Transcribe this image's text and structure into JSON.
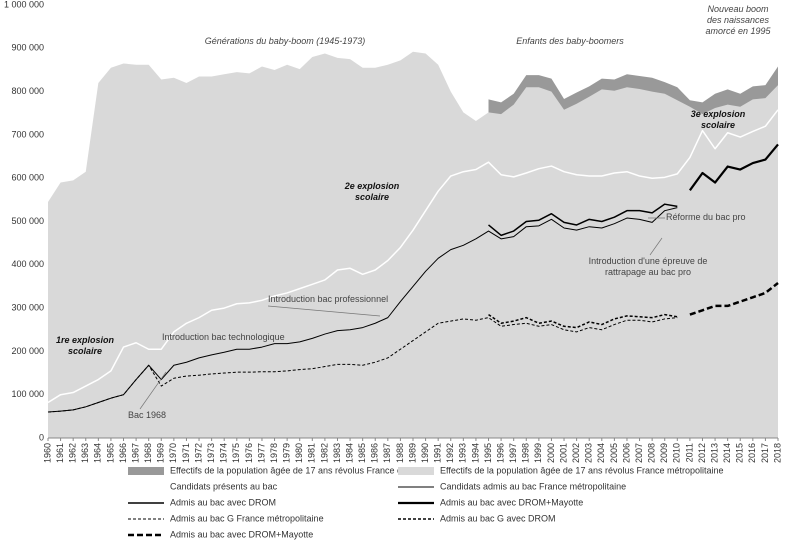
{
  "chart_data": {
    "type": "line",
    "x": [
      1960,
      1961,
      1962,
      1963,
      1964,
      1965,
      1966,
      1967,
      1968,
      1969,
      1970,
      1971,
      1972,
      1973,
      1974,
      1975,
      1976,
      1977,
      1978,
      1979,
      1980,
      1981,
      1982,
      1983,
      1984,
      1985,
      1986,
      1987,
      1988,
      1989,
      1990,
      1991,
      1992,
      1993,
      1994,
      1995,
      1996,
      1997,
      1998,
      1999,
      2000,
      2001,
      2002,
      2003,
      2004,
      2005,
      2006,
      2007,
      2008,
      2009,
      2010,
      2011,
      2012,
      2013,
      2014,
      2015,
      2016,
      2017,
      2018
    ],
    "xlim": [
      1960,
      2018
    ],
    "xticks": [
      1960,
      1961,
      1962,
      1963,
      1964,
      1965,
      1966,
      1967,
      1968,
      1969,
      1970,
      1971,
      1972,
      1973,
      1974,
      1975,
      1976,
      1977,
      1978,
      1979,
      1980,
      1981,
      1982,
      1983,
      1984,
      1985,
      1986,
      1987,
      1988,
      1989,
      1990,
      1991,
      1992,
      1993,
      1994,
      1995,
      1996,
      1997,
      1998,
      1999,
      2000,
      2001,
      2002,
      2003,
      2004,
      2005,
      2006,
      2007,
      2008,
      2009,
      2010,
      2011,
      2012,
      2013,
      2014,
      2015,
      2016,
      2017,
      2018
    ],
    "ylim": [
      0,
      1000000
    ],
    "yticks": [
      0,
      {
        "value": 100000,
        "label": "100 000"
      },
      {
        "value": 200000,
        "label": "200 000"
      },
      {
        "value": 300000,
        "label": "300 000"
      },
      {
        "value": 400000,
        "label": "400 000"
      },
      {
        "value": 500000,
        "label": "500 000"
      },
      {
        "value": 600000,
        "label": "600 000"
      },
      {
        "value": 700000,
        "label": "700 000"
      },
      {
        "value": 800000,
        "label": "800 000"
      },
      {
        "value": 900000,
        "label": "900 000"
      },
      {
        "value": 1000000,
        "label": "1 000 000"
      }
    ],
    "series": [
      {
        "name": "Effectifs de la population âgée de 17 ans révolus France entière",
        "kind": "area",
        "color": "#999999",
        "values": [
          null,
          null,
          null,
          null,
          null,
          null,
          null,
          null,
          null,
          null,
          null,
          null,
          null,
          null,
          null,
          null,
          null,
          null,
          null,
          null,
          null,
          null,
          null,
          null,
          null,
          null,
          null,
          null,
          null,
          null,
          null,
          null,
          null,
          null,
          null,
          782000,
          775000,
          795000,
          838000,
          838000,
          830000,
          783000,
          798000,
          812000,
          830000,
          828000,
          840000,
          836000,
          832000,
          822000,
          810000,
          780000,
          775000,
          795000,
          805000,
          795000,
          812000,
          815000,
          858000
        ]
      },
      {
        "name": "Effectifs de la population âgée de 17 ans révolus France métropolitaine",
        "kind": "area",
        "color": "#d9d9d9",
        "values": [
          545000,
          590000,
          595000,
          615000,
          820000,
          855000,
          865000,
          862000,
          862000,
          828000,
          832000,
          820000,
          835000,
          835000,
          840000,
          845000,
          842000,
          858000,
          850000,
          862000,
          852000,
          880000,
          888000,
          878000,
          875000,
          855000,
          855000,
          862000,
          872000,
          892000,
          888000,
          862000,
          800000,
          752000,
          732000,
          752000,
          748000,
          770000,
          810000,
          810000,
          800000,
          758000,
          772000,
          788000,
          805000,
          802000,
          810000,
          806000,
          800000,
          795000,
          780000,
          765000,
          748000,
          762000,
          770000,
          765000,
          782000,
          785000,
          815000
        ]
      },
      {
        "name": "Candidats présents au bac",
        "kind": "line",
        "color": "#ffffff",
        "width": 1.5,
        "values": [
          82000,
          100000,
          105000,
          120000,
          135000,
          155000,
          210000,
          220000,
          205000,
          205000,
          245000,
          265000,
          278000,
          295000,
          300000,
          310000,
          312000,
          318000,
          328000,
          335000,
          345000,
          355000,
          365000,
          388000,
          392000,
          378000,
          388000,
          410000,
          440000,
          480000,
          525000,
          570000,
          605000,
          615000,
          620000,
          637000,
          608000,
          603000,
          612000,
          622000,
          628000,
          615000,
          608000,
          605000,
          605000,
          612000,
          615000,
          605000,
          600000,
          602000,
          610000,
          648000,
          710000,
          668000,
          705000,
          695000,
          708000,
          720000,
          758000
        ]
      },
      {
        "name": "Candidats admis au bac France métropolitaine",
        "kind": "line",
        "color": "#000000",
        "width": 1,
        "values": [
          60000,
          62000,
          65000,
          72000,
          82000,
          92000,
          100000,
          135000,
          168000,
          135000,
          168000,
          175000,
          185000,
          192000,
          198000,
          205000,
          205000,
          210000,
          218000,
          218000,
          222000,
          230000,
          240000,
          248000,
          250000,
          255000,
          265000,
          278000,
          315000,
          350000,
          385000,
          415000,
          435000,
          445000,
          460000,
          478000,
          460000,
          465000,
          488000,
          490000,
          505000,
          485000,
          480000,
          488000,
          485000,
          495000,
          508000,
          505000,
          498000,
          525000,
          532000,
          null,
          null,
          null,
          null,
          null,
          null,
          null,
          null
        ]
      },
      {
        "name": "Admis au bac avec DROM",
        "kind": "line",
        "color": "#000000",
        "width": 1.5,
        "values": [
          null,
          null,
          null,
          null,
          null,
          null,
          null,
          null,
          null,
          null,
          null,
          null,
          null,
          null,
          null,
          null,
          null,
          null,
          null,
          null,
          null,
          null,
          null,
          null,
          null,
          null,
          null,
          null,
          null,
          null,
          null,
          null,
          null,
          null,
          null,
          492000,
          468000,
          478000,
          500000,
          503000,
          518000,
          498000,
          492000,
          505000,
          500000,
          510000,
          525000,
          525000,
          520000,
          540000,
          535000,
          null,
          null,
          null,
          null,
          null,
          null,
          null,
          null
        ]
      },
      {
        "name": "Admis au bac avec DROM+Mayotte",
        "kind": "line",
        "color": "#000000",
        "width": 2.2,
        "values": [
          null,
          null,
          null,
          null,
          null,
          null,
          null,
          null,
          null,
          null,
          null,
          null,
          null,
          null,
          null,
          null,
          null,
          null,
          null,
          null,
          null,
          null,
          null,
          null,
          null,
          null,
          null,
          null,
          null,
          null,
          null,
          null,
          null,
          null,
          null,
          null,
          null,
          null,
          null,
          null,
          null,
          null,
          null,
          null,
          null,
          null,
          null,
          null,
          null,
          null,
          null,
          572000,
          612000,
          590000,
          627000,
          620000,
          635000,
          643000,
          678000
        ]
      },
      {
        "name": "Admis au bac G France métropolitaine",
        "kind": "line",
        "color": "#000000",
        "width": 1,
        "dash": "3 2",
        "values": [
          60000,
          62000,
          65000,
          72000,
          82000,
          92000,
          100000,
          135000,
          168000,
          120000,
          138000,
          143000,
          145000,
          148000,
          150000,
          152000,
          152000,
          153000,
          153000,
          155000,
          158000,
          160000,
          165000,
          170000,
          170000,
          168000,
          175000,
          185000,
          205000,
          225000,
          245000,
          265000,
          270000,
          275000,
          272000,
          278000,
          258000,
          262000,
          265000,
          258000,
          262000,
          250000,
          245000,
          255000,
          250000,
          262000,
          272000,
          272000,
          268000,
          275000,
          278000,
          null,
          null,
          null,
          null,
          null,
          null,
          null,
          null
        ]
      },
      {
        "name": "Admis au bac G avec DROM",
        "kind": "line",
        "color": "#000000",
        "width": 1.5,
        "dash": "3 2",
        "values": [
          null,
          null,
          null,
          null,
          null,
          null,
          null,
          null,
          null,
          null,
          null,
          null,
          null,
          null,
          null,
          null,
          null,
          null,
          null,
          null,
          null,
          null,
          null,
          null,
          null,
          null,
          null,
          null,
          null,
          null,
          null,
          null,
          null,
          null,
          null,
          285000,
          265000,
          270000,
          278000,
          265000,
          270000,
          258000,
          255000,
          268000,
          262000,
          275000,
          282000,
          280000,
          278000,
          285000,
          280000,
          null,
          null,
          null,
          null,
          null,
          null,
          null,
          null
        ]
      },
      {
        "name": "Admis au bac avec DROM+Mayotte",
        "kind": "line",
        "color": "#000000",
        "width": 2.5,
        "dash": "6 3",
        "values": [
          null,
          null,
          null,
          null,
          null,
          null,
          null,
          null,
          null,
          null,
          null,
          null,
          null,
          null,
          null,
          null,
          null,
          null,
          null,
          null,
          null,
          null,
          null,
          null,
          null,
          null,
          null,
          null,
          null,
          null,
          null,
          null,
          null,
          null,
          null,
          null,
          null,
          null,
          null,
          null,
          null,
          null,
          null,
          null,
          null,
          null,
          null,
          null,
          null,
          null,
          null,
          285000,
          295000,
          305000,
          305000,
          315000,
          325000,
          335000,
          358000
        ]
      }
    ],
    "annotations": [
      [
        "Générations du baby-boom (1945-1973)"
      ],
      [
        "Enfants des baby-boomers"
      ],
      [
        "Nouveau boom",
        "des naissances",
        "amorcé en 1995"
      ],
      [
        "1re explosion",
        "scolaire"
      ],
      [
        "2e explosion",
        "scolaire"
      ],
      [
        "3e explosion",
        "scolaire"
      ],
      [
        "Bac 1968"
      ],
      [
        "Introduction bac technologique"
      ],
      [
        "Introduction bac professionnel"
      ],
      [
        "Réforme du bac pro"
      ],
      [
        "Introduction d'une épreuve de",
        "rattrapage au bac pro"
      ]
    ]
  }
}
